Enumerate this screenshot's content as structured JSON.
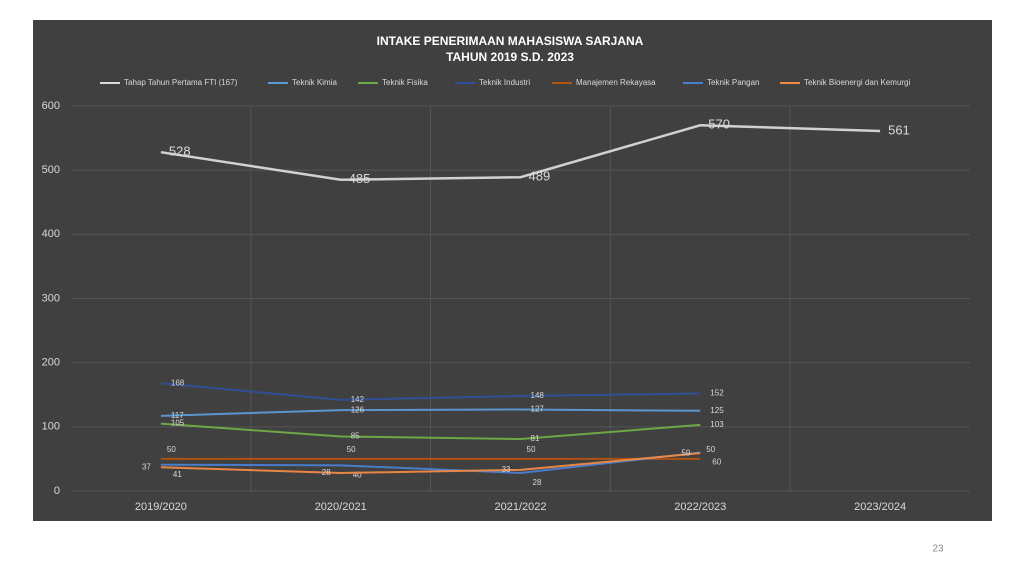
{
  "chart_data": {
    "type": "line",
    "title": "INTAKE  PENERIMAAN MAHASISWA SARJANA",
    "subtitle": "TAHUN 2019 S.D. 2023",
    "categories": [
      "2019/2020",
      "2020/2021",
      "2021/2022",
      "2022/2023",
      "2023/2024"
    ],
    "series": [
      {
        "name": "Tahap Tahun Pertama FTI (167)",
        "color": "#d9d9d9",
        "values": [
          528,
          485,
          489,
          570,
          561
        ]
      },
      {
        "name": "Teknik Kimia",
        "color": "#5b9bd5",
        "values": [
          117,
          126,
          127,
          125,
          null
        ]
      },
      {
        "name": "Teknik Fisika",
        "color": "#70ad47",
        "values": [
          105,
          85,
          81,
          103,
          null
        ]
      },
      {
        "name": "Teknik Industri",
        "color": "#2f4f9a",
        "values": [
          168,
          142,
          148,
          152,
          null
        ]
      },
      {
        "name": "Manajemen Rekayasa",
        "color": "#b5520f",
        "values": [
          50,
          50,
          50,
          50,
          null
        ]
      },
      {
        "name": "Teknik Pangan",
        "color": "#4a7fd0",
        "values": [
          41,
          40,
          28,
          60,
          null
        ]
      },
      {
        "name": "Teknik Bioenergi dan Kemurgi",
        "color": "#f08a45",
        "values": [
          37,
          28,
          33,
          59,
          null
        ]
      }
    ],
    "ylim": [
      0,
      600
    ],
    "yticks": [
      0,
      100,
      200,
      300,
      400,
      500,
      600
    ],
    "grid": true
  },
  "page_number": "23"
}
